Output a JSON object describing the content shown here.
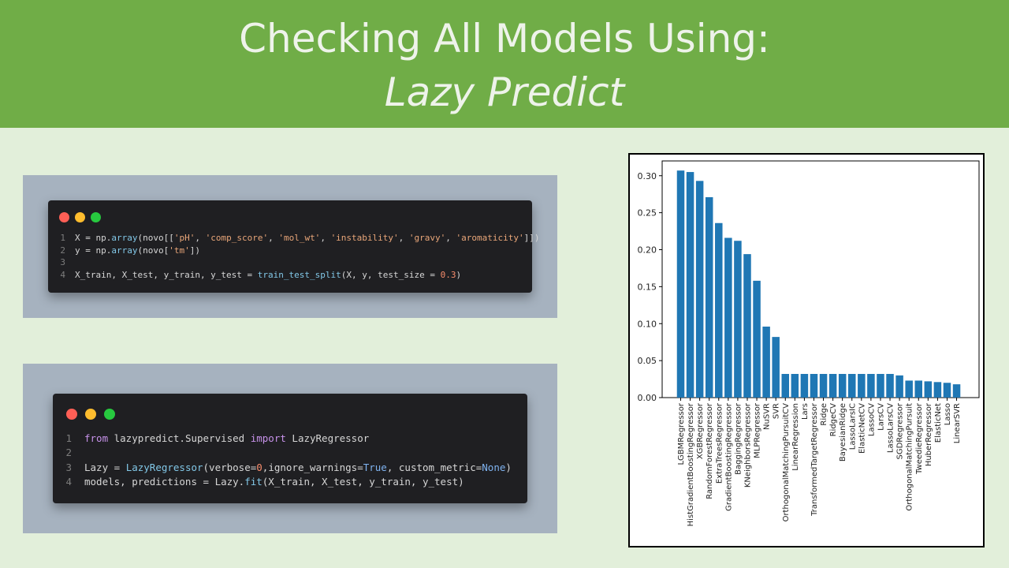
{
  "slide": {
    "title_line1": "Checking All Models Using:",
    "title_line2": "Lazy Predict",
    "banner_color": "#70ad47",
    "background_color": "#e2efda"
  },
  "code_block_1": {
    "lines": [
      {
        "num": "1",
        "segments": [
          {
            "t": "X = np.",
            "c": "plain"
          },
          {
            "t": "array",
            "c": "fn"
          },
          {
            "t": "(novo[[",
            "c": "plain"
          },
          {
            "t": "'pH'",
            "c": "str"
          },
          {
            "t": ", ",
            "c": "plain"
          },
          {
            "t": "'comp_score'",
            "c": "str"
          },
          {
            "t": ", ",
            "c": "plain"
          },
          {
            "t": "'mol_wt'",
            "c": "str"
          },
          {
            "t": ", ",
            "c": "plain"
          },
          {
            "t": "'instability'",
            "c": "str"
          },
          {
            "t": ", ",
            "c": "plain"
          },
          {
            "t": "'gravy'",
            "c": "str"
          },
          {
            "t": ", ",
            "c": "plain"
          },
          {
            "t": "'aromaticity'",
            "c": "str"
          },
          {
            "t": "]])",
            "c": "plain"
          }
        ]
      },
      {
        "num": "2",
        "segments": [
          {
            "t": "y = np.",
            "c": "plain"
          },
          {
            "t": "array",
            "c": "fn"
          },
          {
            "t": "(novo[",
            "c": "plain"
          },
          {
            "t": "'tm'",
            "c": "str"
          },
          {
            "t": "])",
            "c": "plain"
          }
        ]
      },
      {
        "num": "3",
        "segments": []
      },
      {
        "num": "4",
        "segments": [
          {
            "t": "X_train, X_test, y_train, y_test = ",
            "c": "plain"
          },
          {
            "t": "train_test_split",
            "c": "fn"
          },
          {
            "t": "(X, y, test_size = ",
            "c": "plain"
          },
          {
            "t": "0.3",
            "c": "num"
          },
          {
            "t": ")",
            "c": "plain"
          }
        ]
      }
    ]
  },
  "code_block_2": {
    "lines": [
      {
        "num": "1",
        "segments": [
          {
            "t": "from",
            "c": "kw"
          },
          {
            "t": " lazypredict.Supervised ",
            "c": "plain"
          },
          {
            "t": "import",
            "c": "kw"
          },
          {
            "t": " LazyRegressor",
            "c": "plain"
          }
        ]
      },
      {
        "num": "2",
        "segments": []
      },
      {
        "num": "3",
        "segments": [
          {
            "t": "Lazy = ",
            "c": "plain"
          },
          {
            "t": "LazyRegressor",
            "c": "fn"
          },
          {
            "t": "(verbose=",
            "c": "plain"
          },
          {
            "t": "0",
            "c": "num"
          },
          {
            "t": ",ignore_warnings=",
            "c": "plain"
          },
          {
            "t": "True",
            "c": "boo"
          },
          {
            "t": ", custom_metric=",
            "c": "plain"
          },
          {
            "t": "None",
            "c": "boo"
          },
          {
            "t": ")",
            "c": "plain"
          }
        ]
      },
      {
        "num": "4",
        "segments": [
          {
            "t": "models, predictions = Lazy.",
            "c": "plain"
          },
          {
            "t": "fit",
            "c": "fn"
          },
          {
            "t": "(X_train, X_test, y_train, y_test)",
            "c": "plain"
          }
        ]
      }
    ]
  },
  "chart_data": {
    "type": "bar",
    "title": "",
    "xlabel": "",
    "ylabel": "",
    "ylim": [
      0,
      0.32
    ],
    "yticks": [
      "0.00",
      "0.05",
      "0.10",
      "0.15",
      "0.20",
      "0.25",
      "0.30"
    ],
    "bar_color": "#1f77b4",
    "categories": [
      "LGBMRegressor",
      "HistGradientBoostingRegressor",
      "XGBRegressor",
      "RandomForestRegressor",
      "ExtraTreesRegressor",
      "GradientBoostingRegressor",
      "BaggingRegressor",
      "KNeighborsRegressor",
      "MLPRegressor",
      "NuSVR",
      "SVR",
      "OrthogonalMatchingPursuitCV",
      "LinearRegression",
      "Lars",
      "TransformedTargetRegressor",
      "Ridge",
      "RidgeCV",
      "BayesianRidge",
      "LassoLarsIC",
      "ElasticNetCV",
      "LassoCV",
      "LarsCV",
      "LassoLarsCV",
      "SGDRegressor",
      "OrthogonalMatchingPursuit",
      "TweedieRegressor",
      "HuberRegressor",
      "ElasticNet",
      "Lasso",
      "LinearSVR"
    ],
    "values": [
      0.307,
      0.305,
      0.293,
      0.271,
      0.236,
      0.216,
      0.212,
      0.194,
      0.158,
      0.096,
      0.082,
      0.032,
      0.032,
      0.032,
      0.032,
      0.032,
      0.032,
      0.032,
      0.032,
      0.032,
      0.032,
      0.032,
      0.032,
      0.03,
      0.023,
      0.023,
      0.022,
      0.021,
      0.02,
      0.018
    ]
  }
}
